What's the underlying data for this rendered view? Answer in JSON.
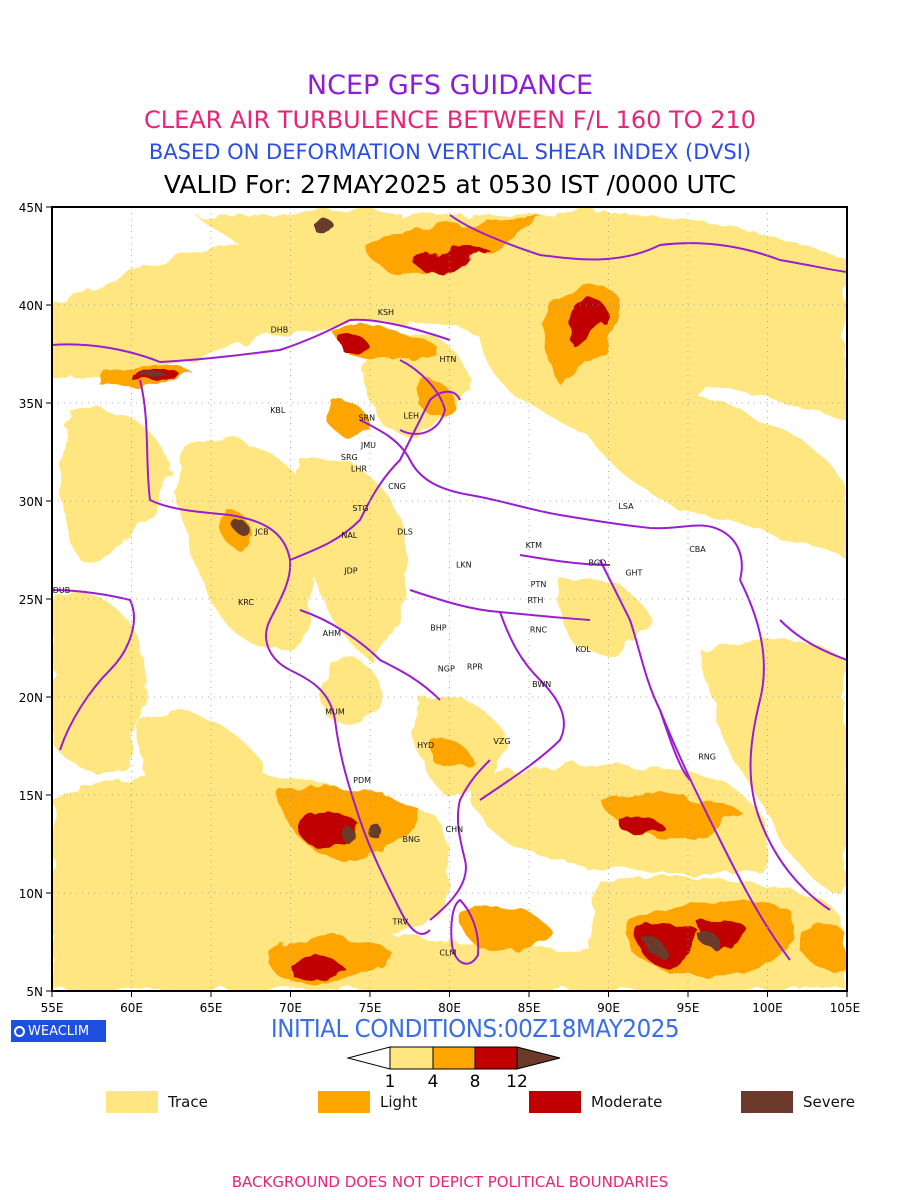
{
  "titles": {
    "line1": "NCEP GFS GUIDANCE",
    "line2": "CLEAR AIR TURBULENCE BETWEEN F/L 160 TO 210",
    "line3": "BASED ON DEFORMATION VERTICAL SHEAR INDEX (DVSI)",
    "line4": "VALID For: 27MAY2025 at 0530 IST /0000 UTC"
  },
  "map": {
    "lon_range": [
      55,
      105
    ],
    "lat_range": [
      5,
      45
    ],
    "lon_ticks": [
      "55E",
      "60E",
      "65E",
      "70E",
      "75E",
      "80E",
      "85E",
      "90E",
      "95E",
      "100E",
      "105E"
    ],
    "lat_ticks": [
      "45N",
      "40N",
      "35N",
      "30N",
      "25N",
      "20N",
      "15N",
      "10N",
      "5N"
    ],
    "grid": "dotted",
    "cities": [
      {
        "code": "KSH",
        "lon": 76.0,
        "lat": 39.5
      },
      {
        "code": "DHB",
        "lon": 69.3,
        "lat": 38.6
      },
      {
        "code": "HTN",
        "lon": 79.9,
        "lat": 37.1
      },
      {
        "code": "KBL",
        "lon": 69.2,
        "lat": 34.5
      },
      {
        "code": "SRN",
        "lon": 74.8,
        "lat": 34.1
      },
      {
        "code": "LEH",
        "lon": 77.6,
        "lat": 34.2
      },
      {
        "code": "JMU",
        "lon": 74.9,
        "lat": 32.7
      },
      {
        "code": "SRG",
        "lon": 73.7,
        "lat": 32.1
      },
      {
        "code": "LHR",
        "lon": 74.3,
        "lat": 31.5
      },
      {
        "code": "CNG",
        "lon": 76.7,
        "lat": 30.6
      },
      {
        "code": "LSA",
        "lon": 91.1,
        "lat": 29.6
      },
      {
        "code": "STG",
        "lon": 74.4,
        "lat": 29.5
      },
      {
        "code": "JCB",
        "lon": 68.2,
        "lat": 28.3
      },
      {
        "code": "DLS",
        "lon": 77.2,
        "lat": 28.3
      },
      {
        "code": "NAL",
        "lon": 73.7,
        "lat": 28.1
      },
      {
        "code": "KTM",
        "lon": 85.3,
        "lat": 27.6
      },
      {
        "code": "CBA",
        "lon": 95.6,
        "lat": 27.4
      },
      {
        "code": "BGD",
        "lon": 89.3,
        "lat": 26.7
      },
      {
        "code": "LKN",
        "lon": 80.9,
        "lat": 26.6
      },
      {
        "code": "GHT",
        "lon": 91.6,
        "lat": 26.2
      },
      {
        "code": "JDP",
        "lon": 73.8,
        "lat": 26.3
      },
      {
        "code": "PTN",
        "lon": 85.6,
        "lat": 25.6
      },
      {
        "code": "DUB",
        "lon": 55.6,
        "lat": 25.3
      },
      {
        "code": "RTH",
        "lon": 85.4,
        "lat": 24.8
      },
      {
        "code": "KRC",
        "lon": 67.2,
        "lat": 24.7
      },
      {
        "code": "BHP",
        "lon": 79.3,
        "lat": 23.4
      },
      {
        "code": "RNC",
        "lon": 85.6,
        "lat": 23.3
      },
      {
        "code": "AHM",
        "lon": 72.6,
        "lat": 23.1
      },
      {
        "code": "KOL",
        "lon": 88.4,
        "lat": 22.3
      },
      {
        "code": "NGP",
        "lon": 79.8,
        "lat": 21.3
      },
      {
        "code": "RPR",
        "lon": 81.6,
        "lat": 21.4
      },
      {
        "code": "BWN",
        "lon": 85.8,
        "lat": 20.5
      },
      {
        "code": "MUM",
        "lon": 72.8,
        "lat": 19.1
      },
      {
        "code": "HYD",
        "lon": 78.5,
        "lat": 17.4
      },
      {
        "code": "VZG",
        "lon": 83.3,
        "lat": 17.6
      },
      {
        "code": "RNG",
        "lon": 96.2,
        "lat": 16.8
      },
      {
        "code": "PDM",
        "lon": 74.5,
        "lat": 15.6
      },
      {
        "code": "CHN",
        "lon": 80.3,
        "lat": 13.1
      },
      {
        "code": "BNG",
        "lon": 77.6,
        "lat": 12.6
      },
      {
        "code": "TRV",
        "lon": 76.9,
        "lat": 8.4
      },
      {
        "code": "CLM",
        "lon": 79.9,
        "lat": 6.8
      }
    ]
  },
  "logo_text": "WEACLIM",
  "initial_conditions": "INITIAL CONDITIONS:00Z18MAY2025",
  "colorbar": {
    "labels": [
      "1",
      "4",
      "8",
      "12"
    ],
    "colors": [
      "#ffe680",
      "#ffa500",
      "#c00000",
      "#6b3a2a"
    ]
  },
  "legend": [
    {
      "label": "Trace",
      "color": "#ffe680"
    },
    {
      "label": "Light",
      "color": "#ffa500"
    },
    {
      "label": "Moderate",
      "color": "#c00000"
    },
    {
      "label": "Severe",
      "color": "#6b3a2a"
    }
  ],
  "footer": "BACKGROUND DOES NOT DEPICT POLITICAL BOUNDARIES"
}
